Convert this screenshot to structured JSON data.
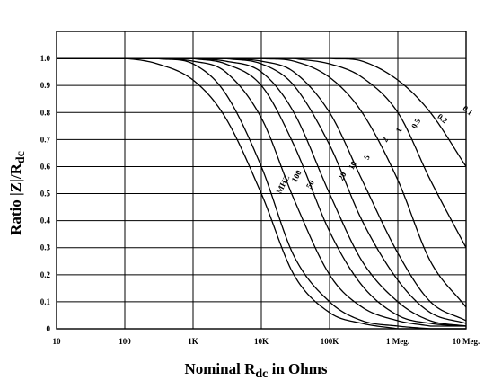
{
  "chart_data": {
    "type": "line",
    "title": "",
    "xlabel": {
      "pre": "Nominal R",
      "sub": "dc",
      "post": " in Ohms"
    },
    "ylabel": {
      "pre": "Ratio |Z|/R",
      "sub": "dc"
    },
    "x_scale": "log",
    "xlim": [
      10,
      10000000
    ],
    "ylim": [
      0,
      1.1
    ],
    "grid": true,
    "x_ticks": [
      {
        "value": 10,
        "label": "10"
      },
      {
        "value": 100,
        "label": "100"
      },
      {
        "value": 1000,
        "label": "1K"
      },
      {
        "value": 10000,
        "label": "10K"
      },
      {
        "value": 100000,
        "label": "100K"
      },
      {
        "value": 1000000,
        "label": "1 Meg."
      },
      {
        "value": 10000000,
        "label": "10 Meg."
      }
    ],
    "y_ticks": [
      {
        "value": 0,
        "label": "0"
      },
      {
        "value": 0.1,
        "label": "0.1"
      },
      {
        "value": 0.2,
        "label": "0.2"
      },
      {
        "value": 0.3,
        "label": "0.3"
      },
      {
        "value": 0.4,
        "label": "0.4"
      },
      {
        "value": 0.5,
        "label": "0.5"
      },
      {
        "value": 0.6,
        "label": "0.6"
      },
      {
        "value": 0.7,
        "label": "0.7"
      },
      {
        "value": 0.8,
        "label": "0.8"
      },
      {
        "value": 0.9,
        "label": "0.9"
      },
      {
        "value": 1.0,
        "label": "1.0"
      }
    ],
    "series": [
      {
        "name": "0.1",
        "x": [
          100000,
          300000,
          1000000,
          3000000,
          10000000
        ],
        "y": [
          1.0,
          0.99,
          0.92,
          0.8,
          0.6
        ]
      },
      {
        "name": "0.2",
        "x": [
          30000,
          100000,
          300000,
          1000000,
          3000000,
          10000000
        ],
        "y": [
          1.0,
          0.98,
          0.93,
          0.8,
          0.55,
          0.3
        ]
      },
      {
        "name": "0.5",
        "x": [
          10000,
          30000,
          100000,
          300000,
          1000000,
          3000000,
          10000000
        ],
        "y": [
          1.0,
          0.99,
          0.93,
          0.8,
          0.55,
          0.25,
          0.08
        ]
      },
      {
        "name": "1",
        "x": [
          3000,
          10000,
          30000,
          100000,
          300000,
          1000000,
          3000000,
          10000000
        ],
        "y": [
          1.0,
          0.99,
          0.95,
          0.8,
          0.55,
          0.28,
          0.1,
          0.03
        ]
      },
      {
        "name": "2",
        "x": [
          3000,
          10000,
          30000,
          100000,
          300000,
          1000000,
          3000000,
          10000000
        ],
        "y": [
          1.0,
          0.98,
          0.9,
          0.68,
          0.4,
          0.18,
          0.06,
          0.02
        ]
      },
      {
        "name": "5",
        "x": [
          1000,
          3000,
          10000,
          30000,
          100000,
          300000,
          1000000,
          3000000,
          10000000
        ],
        "y": [
          1.0,
          0.99,
          0.95,
          0.8,
          0.5,
          0.25,
          0.1,
          0.03,
          0.01
        ]
      },
      {
        "name": "10",
        "x": [
          1000,
          3000,
          10000,
          30000,
          100000,
          300000,
          1000000,
          3000000,
          10000000
        ],
        "y": [
          1.0,
          0.98,
          0.9,
          0.68,
          0.36,
          0.16,
          0.05,
          0.02,
          0.01
        ]
      },
      {
        "name": "20",
        "x": [
          300,
          1000,
          3000,
          10000,
          30000,
          100000,
          300000,
          1000000,
          3000000
        ],
        "y": [
          1.0,
          0.99,
          0.95,
          0.78,
          0.48,
          0.2,
          0.08,
          0.03,
          0.01
        ]
      },
      {
        "name": "50",
        "x": [
          300,
          1000,
          3000,
          10000,
          30000,
          100000,
          300000,
          1000000,
          3000000
        ],
        "y": [
          1.0,
          0.98,
          0.87,
          0.6,
          0.27,
          0.1,
          0.03,
          0.01,
          0.0
        ]
      },
      {
        "name": "100",
        "x": [
          30,
          100,
          300,
          1000,
          3000,
          10000,
          30000,
          100000,
          300000,
          1000000
        ],
        "y": [
          1.0,
          1.0,
          0.98,
          0.92,
          0.78,
          0.5,
          0.2,
          0.06,
          0.02,
          0.0
        ]
      }
    ],
    "unit_label": "MHZ"
  }
}
